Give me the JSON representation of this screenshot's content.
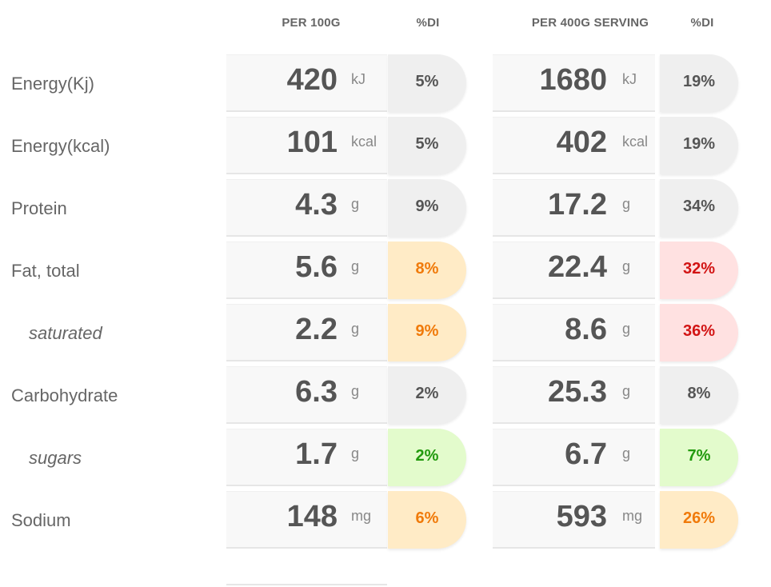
{
  "headers": {
    "per100": "PER 100G",
    "di1": "%DI",
    "perServing": "PER 400G SERVING",
    "di2": "%DI"
  },
  "rows": [
    {
      "label": "Energy(Kj)",
      "sub": false,
      "v1": "420",
      "u1": "kJ",
      "p1": "5%",
      "c1": "grey",
      "v2": "1680",
      "u2": "kJ",
      "p2": "19%",
      "c2": "grey"
    },
    {
      "label": "Energy(kcal)",
      "sub": false,
      "v1": "101",
      "u1": "kcal",
      "p1": "5%",
      "c1": "grey",
      "v2": "402",
      "u2": "kcal",
      "p2": "19%",
      "c2": "grey"
    },
    {
      "label": "Protein",
      "sub": false,
      "v1": "4.3",
      "u1": "g",
      "p1": "9%",
      "c1": "grey",
      "v2": "17.2",
      "u2": "g",
      "p2": "34%",
      "c2": "grey"
    },
    {
      "label": "Fat, total",
      "sub": false,
      "v1": "5.6",
      "u1": "g",
      "p1": "8%",
      "c1": "orange",
      "v2": "22.4",
      "u2": "g",
      "p2": "32%",
      "c2": "red"
    },
    {
      "label": "saturated",
      "sub": true,
      "v1": "2.2",
      "u1": "g",
      "p1": "9%",
      "c1": "orange",
      "v2": "8.6",
      "u2": "g",
      "p2": "36%",
      "c2": "red"
    },
    {
      "label": "Carbohydrate",
      "sub": false,
      "v1": "6.3",
      "u1": "g",
      "p1": "2%",
      "c1": "grey",
      "v2": "25.3",
      "u2": "g",
      "p2": "8%",
      "c2": "grey"
    },
    {
      "label": "sugars",
      "sub": true,
      "v1": "1.7",
      "u1": "g",
      "p1": "2%",
      "c1": "green",
      "v2": "6.7",
      "u2": "g",
      "p2": "7%",
      "c2": "green"
    },
    {
      "label": "Sodium",
      "sub": false,
      "v1": "148",
      "u1": "mg",
      "p1": "6%",
      "c1": "orange",
      "v2": "593",
      "u2": "mg",
      "p2": "26%",
      "c2": "orange"
    }
  ],
  "colors": {
    "grey": "#efefef",
    "orange": "#ffebc6",
    "green": "#e3fbcc",
    "red": "#ffe1e1",
    "orange_text": "#f07a0a",
    "green_text": "#229a0e",
    "red_text": "#d21414"
  }
}
